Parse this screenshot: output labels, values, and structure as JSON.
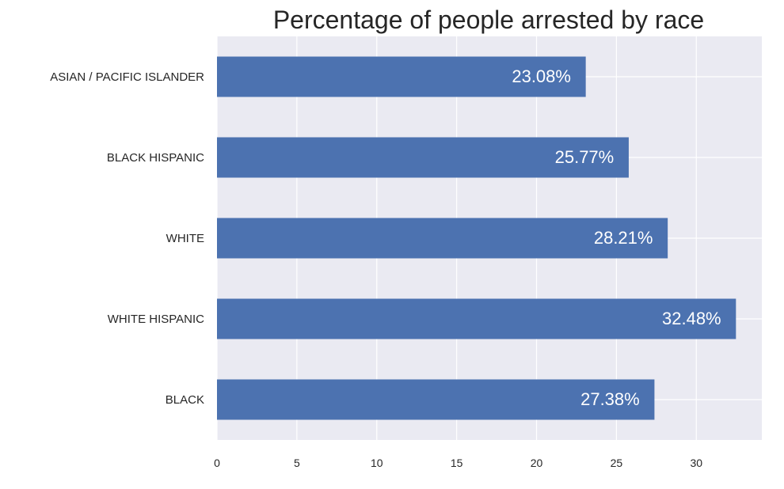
{
  "chart_data": {
    "type": "bar",
    "orientation": "horizontal",
    "title": "Percentage of people arrested by race",
    "xlabel": "",
    "ylabel": "",
    "categories": [
      "ASIAN / PACIFIC ISLANDER",
      "BLACK HISPANIC",
      "WHITE",
      "WHITE HISPANIC",
      "BLACK"
    ],
    "values": [
      23.08,
      25.77,
      28.21,
      32.48,
      27.38
    ],
    "data_labels": [
      "23.08%",
      "25.77%",
      "28.21%",
      "32.48%",
      "27.38%"
    ],
    "xlim": [
      0,
      34.1
    ],
    "xticks": [
      0,
      5,
      10,
      15,
      20,
      25,
      30
    ],
    "grid": true,
    "legend": "none",
    "colors": {
      "bar": "#4c72b0",
      "background": "#eaeaf2",
      "grid": "#ffffff"
    }
  }
}
